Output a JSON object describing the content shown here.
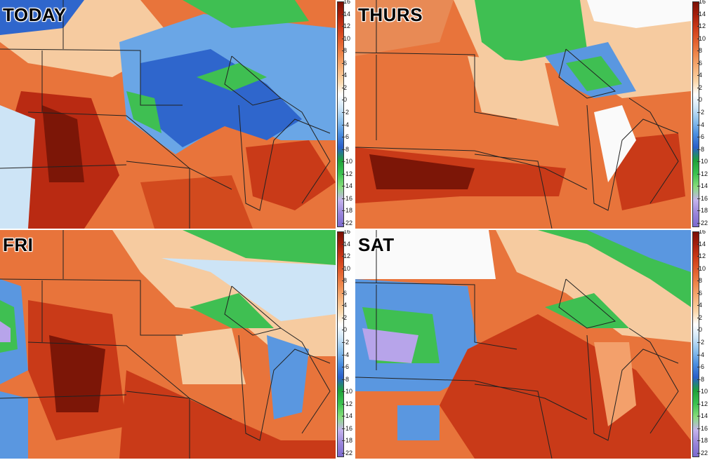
{
  "panels": [
    {
      "id": "today",
      "title": "TODAY"
    },
    {
      "id": "thurs",
      "title": "THURS"
    },
    {
      "id": "fri",
      "title": "FRI"
    },
    {
      "id": "sat",
      "title": "SAT"
    }
  ],
  "colorbar": {
    "ticks": [
      "16",
      "14",
      "12",
      "10",
      "8",
      "6",
      "4",
      "2",
      "0",
      "-2",
      "-4",
      "-6",
      "-8",
      "-10",
      "-12",
      "-14",
      "-16",
      "-18",
      "-22"
    ],
    "colors": [
      "#7a1005",
      "#a81f0c",
      "#cf3d1a",
      "#e3612e",
      "#ef8a4e",
      "#f6b27a",
      "#fbd7a9",
      "#ffffff",
      "#cfe6f7",
      "#8cc0ec",
      "#4b8fe0",
      "#2c5fc9",
      "#1fa13a",
      "#3cc24f",
      "#88dd7c",
      "#c4b3ec",
      "#9a86db",
      "#7b6acf"
    ]
  },
  "palette": {
    "dark_red": "#7c1607",
    "red": "#c93a18",
    "orange": "#e86a33",
    "light_orange": "#f3a06b",
    "tan": "#f6cba0",
    "white": "#fafafa",
    "light_blue": "#cde4f6",
    "blue": "#5a97e0",
    "deep_blue": "#2a5ec8",
    "green": "#3fbf52",
    "light_green": "#8fdc85",
    "purple": "#b7a4ea"
  }
}
